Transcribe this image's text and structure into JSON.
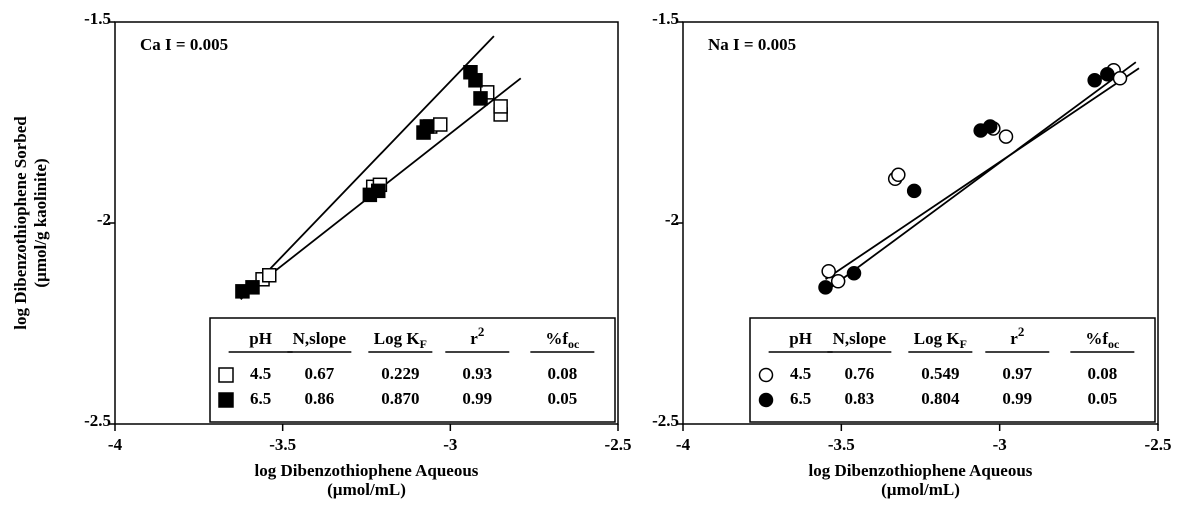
{
  "chart_data": [
    {
      "type": "scatter",
      "annotation": "Ca I = 0.005",
      "xlabel": [
        "log Dibenzothiophene Aqueous",
        "(µmol/mL)"
      ],
      "ylabel": [
        "log Dibenzothiophene Sorbed",
        "(µmol/g kaolinite)"
      ],
      "xlim": [
        -4,
        -2.5
      ],
      "xticks": [
        -4,
        -3.5,
        -3,
        -2.5
      ],
      "ylim": [
        -2.5,
        -1.5
      ],
      "yticks": [
        -2.5,
        -2,
        -1.5
      ],
      "series": [
        {
          "name": "4.5",
          "color": "#000000",
          "marker": "square",
          "filled": false,
          "x": [
            -3.56,
            -3.54,
            -3.23,
            -3.21,
            -3.06,
            -3.03,
            -2.89,
            -2.85,
            -2.85
          ],
          "values": [
            -2.14,
            -2.13,
            -1.91,
            -1.905,
            -1.76,
            -1.755,
            -1.675,
            -1.73,
            -1.71
          ]
        },
        {
          "name": "6.5",
          "color": "#000000",
          "marker": "square",
          "filled": true,
          "x": [
            -3.62,
            -3.59,
            -3.24,
            -3.215,
            -3.08,
            -3.07,
            -2.94,
            -2.925,
            -2.91
          ],
          "values": [
            -2.17,
            -2.16,
            -1.93,
            -1.92,
            -1.775,
            -1.76,
            -1.625,
            -1.645,
            -1.69
          ]
        }
      ],
      "fits": [
        {
          "x": [
            -3.6,
            -2.79
          ],
          "values": [
            -2.17,
            -1.64
          ]
        },
        {
          "x": [
            -3.625,
            -2.87
          ],
          "values": [
            -2.19,
            -1.535
          ]
        }
      ],
      "table": {
        "header": [
          "pH",
          {
            "text": "N,slope"
          },
          {
            "text": "Log K",
            "sub": "F"
          },
          {
            "text": "r",
            "sup": "2"
          },
          {
            "text": "%f",
            "sub": "oc"
          }
        ],
        "rows": [
          [
            "0.67",
            "0.229",
            "0.93",
            "0.08"
          ],
          [
            "0.86",
            "0.870",
            "0.99",
            "0.05"
          ]
        ]
      }
    },
    {
      "type": "scatter",
      "annotation": "Na  I = 0.005",
      "xlabel": [
        "log Dibenzothiophene Aqueous",
        "(µmol/mL)"
      ],
      "xlim": [
        -4,
        -2.5
      ],
      "xticks": [
        -4,
        -3.5,
        -3,
        -2.5
      ],
      "ylim": [
        -2.5,
        -1.5
      ],
      "yticks": [
        -2.5,
        -2,
        -1.5
      ],
      "series": [
        {
          "name": "4.5",
          "color": "#000000",
          "marker": "circle",
          "filled": false,
          "x": [
            -3.54,
            -3.51,
            -3.33,
            -3.32,
            -3.02,
            -2.98,
            -2.64,
            -2.62
          ],
          "values": [
            -2.12,
            -2.145,
            -1.89,
            -1.88,
            -1.765,
            -1.785,
            -1.62,
            -1.64
          ]
        },
        {
          "name": "6.5",
          "color": "#000000",
          "marker": "circle",
          "filled": true,
          "x": [
            -3.55,
            -3.46,
            -3.27,
            -3.06,
            -3.03,
            -2.7,
            -2.66
          ],
          "values": [
            -2.16,
            -2.125,
            -1.92,
            -1.77,
            -1.76,
            -1.645,
            -1.63
          ]
        }
      ],
      "fits": [
        {
          "x": [
            -3.55,
            -2.57
          ],
          "values": [
            -2.17,
            -1.6
          ]
        },
        {
          "x": [
            -3.55,
            -2.56
          ],
          "values": [
            -2.14,
            -1.615
          ]
        }
      ],
      "table": {
        "header": [
          "pH",
          {
            "text": "N,slope"
          },
          {
            "text": "Log K",
            "sub": "F"
          },
          {
            "text": "r",
            "sup": "2"
          },
          {
            "text": "%f",
            "sub": "oc"
          }
        ],
        "rows": [
          [
            "0.76",
            "0.549",
            "0.97",
            "0.08"
          ],
          [
            "0.83",
            "0.804",
            "0.99",
            "0.05"
          ]
        ]
      }
    }
  ]
}
